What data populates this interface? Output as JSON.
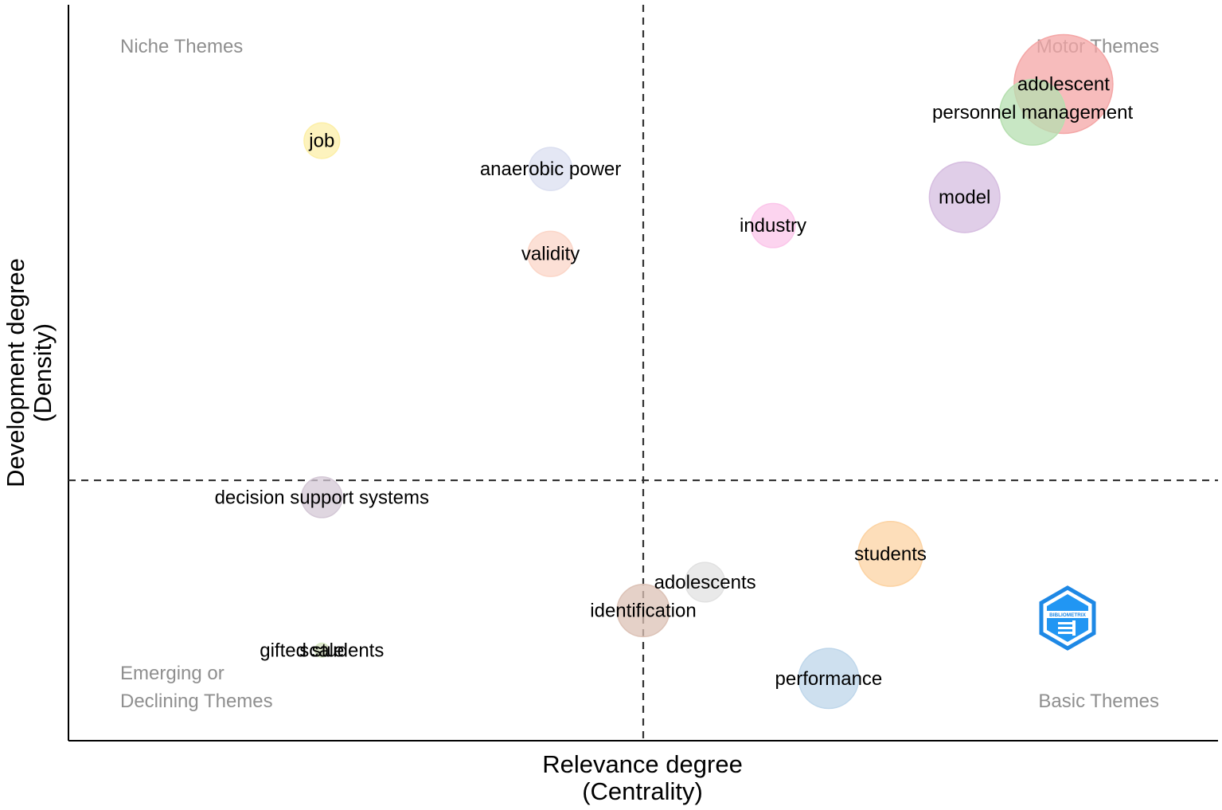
{
  "chart_data": {
    "type": "scatter",
    "title": "",
    "xlabel": "Relevance degree",
    "xlabel_sub": "(Centrality)",
    "ylabel": "Development degree",
    "ylabel_sub": "(Density)",
    "grid": false,
    "quadrant_labels": {
      "top_left": "Niche Themes",
      "top_right": "Motor Themes",
      "bottom_left_1": "Emerging or",
      "bottom_left_2": "Declining Themes",
      "bottom_right": "Basic Themes"
    },
    "logo": {
      "text": "BIBLIOMETRIX",
      "color": "#1e88e5"
    },
    "points": [
      {
        "label": "adolescent",
        "x": 6.8,
        "y": 7.0,
        "size": 10.0,
        "color": "#f4a6a6"
      },
      {
        "label": "personnel management",
        "x": 6.3,
        "y": 6.5,
        "size": 4.4,
        "color": "#b6dfb0"
      },
      {
        "label": "model",
        "x": 5.2,
        "y": 5.0,
        "size": 5.1,
        "color": "#d6bde0"
      },
      {
        "label": "industry",
        "x": 2.1,
        "y": 4.5,
        "size": 2.0,
        "color": "#fbc6ea"
      },
      {
        "label": "job",
        "x": -5.2,
        "y": 6.0,
        "size": 1.3,
        "color": "#fcefa8"
      },
      {
        "label": "anaerobic power",
        "x": -1.5,
        "y": 5.5,
        "size": 1.9,
        "color": "#dbdff0"
      },
      {
        "label": "validity",
        "x": -1.5,
        "y": 4.0,
        "size": 2.1,
        "color": "#fbd6c8"
      },
      {
        "label": "decision support systems",
        "x": -5.2,
        "y": -0.3,
        "size": 1.7,
        "color": "#d4c8d6"
      },
      {
        "label": "students",
        "x": 4.0,
        "y": -1.3,
        "size": 4.3,
        "color": "#fcd3a3"
      },
      {
        "label": "adolescents",
        "x": 1.0,
        "y": -1.8,
        "size": 1.6,
        "color": "#e1e1e1"
      },
      {
        "label": "identification",
        "x": 0.0,
        "y": -2.3,
        "size": 2.8,
        "color": "#dcc2b6"
      },
      {
        "label": "gifted students",
        "x": -5.2,
        "y": -3.0,
        "size": 0.2,
        "color": "#d9ecc4"
      },
      {
        "label": "scale",
        "x": -5.2,
        "y": -3.0,
        "size": 0.15,
        "color": "#dfe6cd"
      },
      {
        "label": "performance",
        "x": 3.0,
        "y": -3.5,
        "size": 3.7,
        "color": "#bed6ea"
      }
    ],
    "xlim": [
      -9.3,
      9.3
    ],
    "ylim": [
      -4.6,
      8.4
    ],
    "x_intercept": 0,
    "y_intercept": 0
  }
}
